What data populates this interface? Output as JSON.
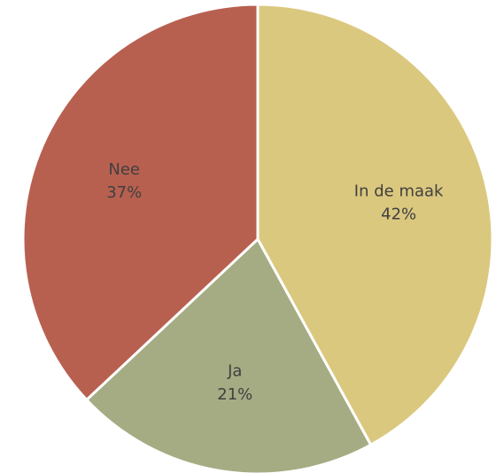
{
  "chart_data": {
    "type": "pie",
    "title": "",
    "legend": "none",
    "slices": [
      {
        "label": "In de maak",
        "value": 42,
        "value_label": "42%",
        "color": "#DBC87F"
      },
      {
        "label": "Ja",
        "value": 21,
        "value_label": "21%",
        "color": "#A5AC83"
      },
      {
        "label": "Nee",
        "value": 37,
        "value_label": "37%",
        "color": "#B86050"
      }
    ]
  }
}
